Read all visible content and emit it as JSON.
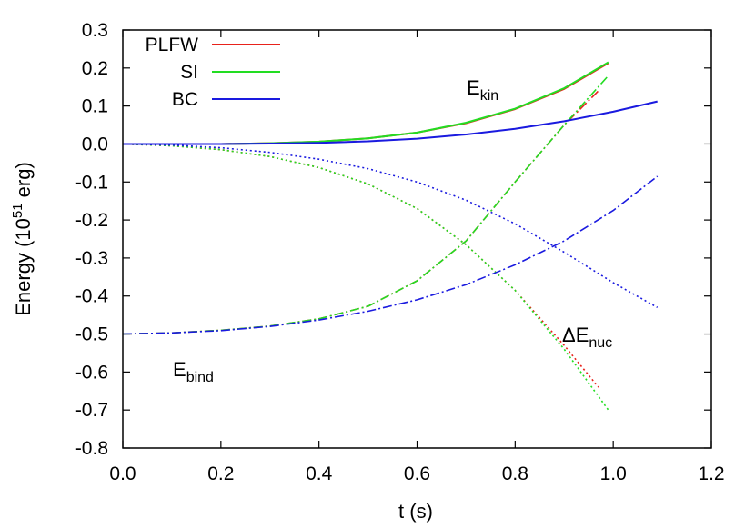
{
  "chart_data": {
    "type": "line",
    "title": "",
    "xlabel": "t (s)",
    "ylabel_parts": {
      "prefix": "Energy (10",
      "superscript": "51",
      "suffix": " erg)"
    },
    "xlim": [
      0.0,
      1.2
    ],
    "ylim": [
      -0.8,
      0.3
    ],
    "x_ticks": [
      "0.0",
      "0.2",
      "0.4",
      "0.6",
      "0.8",
      "1.0",
      "1.2"
    ],
    "y_ticks": [
      "0.3",
      "0.2",
      "0.1",
      "0.0",
      "-0.1",
      "-0.2",
      "-0.3",
      "-0.4",
      "-0.5",
      "-0.6",
      "-0.7",
      "-0.8"
    ],
    "grid": false,
    "legend_position": "top-left",
    "legend": [
      {
        "name": "PLFW",
        "color": "#e8221b"
      },
      {
        "name": "SI",
        "color": "#22dd22"
      },
      {
        "name": "BC",
        "color": "#1a1adf"
      }
    ],
    "annotations": {
      "ekin": {
        "base": "E",
        "sub": "kin"
      },
      "enuc": {
        "base": "ΔE",
        "sub": "nuc"
      },
      "ebind": {
        "base": "E",
        "sub": "bind"
      }
    },
    "series": [
      {
        "name": "PLFW",
        "quantity": "E_kin",
        "style": "solid",
        "color": "#e8221b",
        "x": [
          0.0,
          0.1,
          0.2,
          0.3,
          0.4,
          0.5,
          0.6,
          0.7,
          0.8,
          0.9,
          0.99
        ],
        "y": [
          0.0,
          0.0,
          0.0,
          0.002,
          0.006,
          0.015,
          0.03,
          0.055,
          0.092,
          0.145,
          0.213
        ]
      },
      {
        "name": "PLFW",
        "quantity": "dE_nuc",
        "style": "dotted",
        "color": "#e8221b",
        "x": [
          0.0,
          0.1,
          0.2,
          0.3,
          0.4,
          0.5,
          0.6,
          0.7,
          0.8,
          0.9,
          0.97
        ],
        "y": [
          0.0,
          -0.005,
          -0.015,
          -0.033,
          -0.062,
          -0.105,
          -0.17,
          -0.265,
          -0.385,
          -0.53,
          -0.64
        ]
      },
      {
        "name": "PLFW",
        "quantity": "E_bind",
        "style": "dash-dot",
        "color": "#e8221b",
        "x": [
          0.0,
          0.1,
          0.2,
          0.3,
          0.4,
          0.5,
          0.6,
          0.7,
          0.8,
          0.9,
          0.97
        ],
        "y": [
          -0.5,
          -0.497,
          -0.49,
          -0.479,
          -0.46,
          -0.427,
          -0.36,
          -0.255,
          -0.1,
          0.05,
          0.14
        ]
      },
      {
        "name": "SI",
        "quantity": "E_kin",
        "style": "solid",
        "color": "#22dd22",
        "x": [
          0.0,
          0.1,
          0.2,
          0.3,
          0.4,
          0.5,
          0.6,
          0.7,
          0.8,
          0.9,
          0.99
        ],
        "y": [
          0.0,
          0.0,
          0.0,
          0.002,
          0.006,
          0.015,
          0.03,
          0.056,
          0.093,
          0.147,
          0.215
        ]
      },
      {
        "name": "SI",
        "quantity": "dE_nuc",
        "style": "dotted",
        "color": "#22dd22",
        "x": [
          0.0,
          0.1,
          0.2,
          0.3,
          0.4,
          0.5,
          0.6,
          0.7,
          0.8,
          0.9,
          0.99
        ],
        "y": [
          0.0,
          -0.005,
          -0.015,
          -0.033,
          -0.062,
          -0.105,
          -0.17,
          -0.265,
          -0.385,
          -0.54,
          -0.7
        ]
      },
      {
        "name": "SI",
        "quantity": "E_bind",
        "style": "dash-dot",
        "color": "#22dd22",
        "x": [
          0.0,
          0.1,
          0.2,
          0.3,
          0.4,
          0.5,
          0.6,
          0.7,
          0.8,
          0.9,
          0.99
        ],
        "y": [
          -0.5,
          -0.497,
          -0.49,
          -0.479,
          -0.46,
          -0.427,
          -0.36,
          -0.255,
          -0.1,
          0.05,
          0.18
        ]
      },
      {
        "name": "BC",
        "quantity": "E_kin",
        "style": "solid",
        "color": "#1a1adf",
        "x": [
          0.0,
          0.1,
          0.2,
          0.3,
          0.4,
          0.5,
          0.6,
          0.7,
          0.8,
          0.9,
          1.0,
          1.09
        ],
        "y": [
          0.0,
          0.0,
          0.0,
          0.001,
          0.003,
          0.007,
          0.014,
          0.025,
          0.04,
          0.06,
          0.085,
          0.112
        ]
      },
      {
        "name": "BC",
        "quantity": "dE_nuc",
        "style": "dotted",
        "color": "#1a1adf",
        "x": [
          0.0,
          0.1,
          0.2,
          0.3,
          0.4,
          0.5,
          0.6,
          0.7,
          0.8,
          0.9,
          1.0,
          1.09
        ],
        "y": [
          0.0,
          -0.003,
          -0.01,
          -0.022,
          -0.04,
          -0.065,
          -0.1,
          -0.148,
          -0.21,
          -0.285,
          -0.365,
          -0.43
        ]
      },
      {
        "name": "BC",
        "quantity": "E_bind",
        "style": "dash-dot",
        "color": "#1a1adf",
        "x": [
          0.0,
          0.1,
          0.2,
          0.3,
          0.4,
          0.5,
          0.6,
          0.7,
          0.8,
          0.9,
          1.0,
          1.09
        ],
        "y": [
          -0.5,
          -0.497,
          -0.491,
          -0.48,
          -0.463,
          -0.44,
          -0.41,
          -0.37,
          -0.318,
          -0.255,
          -0.175,
          -0.085
        ]
      }
    ]
  }
}
